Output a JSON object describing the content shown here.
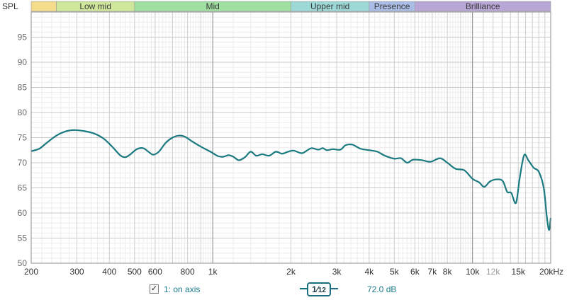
{
  "chart_data": {
    "type": "line",
    "ylabel": "SPL",
    "xscale": "log",
    "xlim": [
      200,
      20000
    ],
    "ylim": [
      50,
      100
    ],
    "grid": true,
    "yticks": [
      50,
      55,
      60,
      65,
      70,
      75,
      80,
      85,
      90,
      95
    ],
    "xticks": [
      {
        "value": 200,
        "label": "200"
      },
      {
        "value": 300,
        "label": "300"
      },
      {
        "value": 400,
        "label": "400"
      },
      {
        "value": 500,
        "label": "500"
      },
      {
        "value": 600,
        "label": "600"
      },
      {
        "value": 800,
        "label": "800"
      },
      {
        "value": 1000,
        "label": "1k"
      },
      {
        "value": 2000,
        "label": "2k"
      },
      {
        "value": 3000,
        "label": "3k"
      },
      {
        "value": 4000,
        "label": "4k"
      },
      {
        "value": 5000,
        "label": "5k"
      },
      {
        "value": 6000,
        "label": "6k"
      },
      {
        "value": 7000,
        "label": "7k"
      },
      {
        "value": 8000,
        "label": "8k"
      },
      {
        "value": 10000,
        "label": "10k"
      },
      {
        "value": 12000,
        "label": "12k",
        "minor": true
      },
      {
        "value": 15000,
        "label": "15k"
      },
      {
        "value": 20000,
        "label": "20kHz"
      }
    ],
    "bands": [
      {
        "label": "",
        "from": 200,
        "to": 250,
        "color": "#f5dc8a"
      },
      {
        "label": "Low mid",
        "from": 250,
        "to": 500,
        "color": "#cfe79a"
      },
      {
        "label": "Mid",
        "from": 500,
        "to": 2000,
        "color": "#9fdfa0"
      },
      {
        "label": "Upper mid",
        "from": 2000,
        "to": 4000,
        "color": "#9cd9d6"
      },
      {
        "label": "Presence",
        "from": 4000,
        "to": 6000,
        "color": "#a9bde6"
      },
      {
        "label": "Brilliance",
        "from": 6000,
        "to": 20000,
        "color": "#b8a6d6"
      }
    ],
    "series": [
      {
        "name": "",
        "color": "#1b7a80",
        "points": [
          [
            200,
            72.3
          ],
          [
            215,
            72.8
          ],
          [
            230,
            74.0
          ],
          [
            250,
            75.4
          ],
          [
            270,
            76.2
          ],
          [
            290,
            76.5
          ],
          [
            320,
            76.3
          ],
          [
            350,
            75.8
          ],
          [
            380,
            74.8
          ],
          [
            410,
            73.2
          ],
          [
            440,
            71.5
          ],
          [
            460,
            71.1
          ],
          [
            480,
            71.6
          ],
          [
            510,
            72.7
          ],
          [
            540,
            72.9
          ],
          [
            565,
            72.2
          ],
          [
            590,
            71.6
          ],
          [
            620,
            72.2
          ],
          [
            660,
            74.0
          ],
          [
            700,
            75.0
          ],
          [
            740,
            75.4
          ],
          [
            780,
            75.2
          ],
          [
            830,
            74.3
          ],
          [
            900,
            73.2
          ],
          [
            980,
            72.2
          ],
          [
            1050,
            71.3
          ],
          [
            1100,
            71.2
          ],
          [
            1150,
            71.5
          ],
          [
            1200,
            71.2
          ],
          [
            1260,
            70.5
          ],
          [
            1330,
            71.1
          ],
          [
            1400,
            72.2
          ],
          [
            1470,
            71.4
          ],
          [
            1550,
            71.7
          ],
          [
            1650,
            71.4
          ],
          [
            1750,
            72.2
          ],
          [
            1850,
            71.8
          ],
          [
            1950,
            72.2
          ],
          [
            2050,
            72.4
          ],
          [
            2200,
            71.9
          ],
          [
            2300,
            72.4
          ],
          [
            2400,
            72.9
          ],
          [
            2550,
            72.6
          ],
          [
            2650,
            72.9
          ],
          [
            2750,
            72.5
          ],
          [
            2900,
            72.7
          ],
          [
            3100,
            72.6
          ],
          [
            3250,
            73.5
          ],
          [
            3450,
            73.6
          ],
          [
            3700,
            72.8
          ],
          [
            4000,
            72.5
          ],
          [
            4300,
            72.2
          ],
          [
            4600,
            71.4
          ],
          [
            5000,
            70.8
          ],
          [
            5300,
            70.9
          ],
          [
            5600,
            70.0
          ],
          [
            5900,
            70.6
          ],
          [
            6400,
            70.5
          ],
          [
            6900,
            70.2
          ],
          [
            7500,
            70.9
          ],
          [
            8000,
            70.0
          ],
          [
            8600,
            68.8
          ],
          [
            9300,
            68.5
          ],
          [
            10000,
            66.8
          ],
          [
            10600,
            66.1
          ],
          [
            11100,
            65.2
          ],
          [
            11700,
            66.3
          ],
          [
            12500,
            66.7
          ],
          [
            13100,
            66.3
          ],
          [
            13600,
            64.2
          ],
          [
            14100,
            64.0
          ],
          [
            14700,
            62.0
          ],
          [
            15200,
            67.0
          ],
          [
            15800,
            71.5
          ],
          [
            16400,
            70.5
          ],
          [
            17200,
            69.0
          ],
          [
            18000,
            68.2
          ],
          [
            18800,
            65.0
          ],
          [
            19300,
            59.5
          ],
          [
            19700,
            56.6
          ],
          [
            20000,
            59.0
          ]
        ]
      }
    ]
  },
  "footer": {
    "legend_check": "✓",
    "legend_label": "1: on axis",
    "smoothing_num": "1",
    "smoothing_den": "12",
    "gain": "72.0 dB"
  }
}
